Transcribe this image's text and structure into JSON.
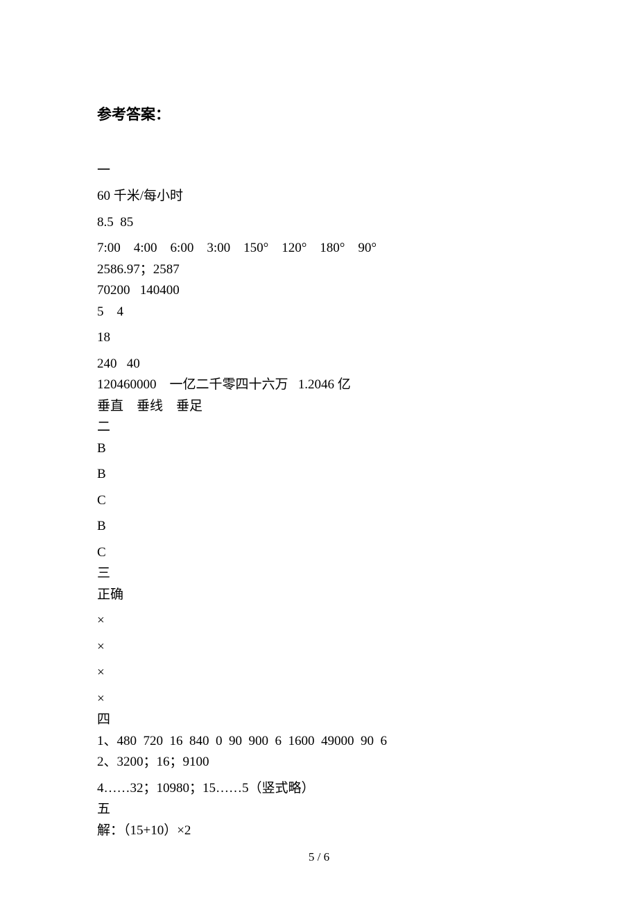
{
  "title": "参考答案：",
  "section1": {
    "head": "一",
    "l1": "60 千米/每小时",
    "l2": "8.5  85",
    "l3": "7:00    4:00    6:00    3:00    150°    120°    180°    90°",
    "l4": "2586.97；2587",
    "l5": "70200   140400",
    "l6": "5    4",
    "l7": "18",
    "l8": "240   40",
    "l9": "120460000    一亿二千零四十六万   1.2046 亿",
    "l10": "垂直    垂线    垂足"
  },
  "section2": {
    "head": "二",
    "a1": "B",
    "a2": "B",
    "a3": "C",
    "a4": "B",
    "a5": "C"
  },
  "section3": {
    "head": "三",
    "a1": "正确",
    "a2": "×",
    "a3": "×",
    "a4": "×",
    "a5": "×"
  },
  "section4": {
    "head": "四",
    "l1": "1、480  720  16  840  0  90  900  6  1600  49000  90  6",
    "l2": "2、3200；16；9100",
    "l3": "4……32；10980；15……5（竖式略）"
  },
  "section5": {
    "head": "五",
    "l1": "解：（15+10）×2"
  },
  "footer": "5 / 6"
}
